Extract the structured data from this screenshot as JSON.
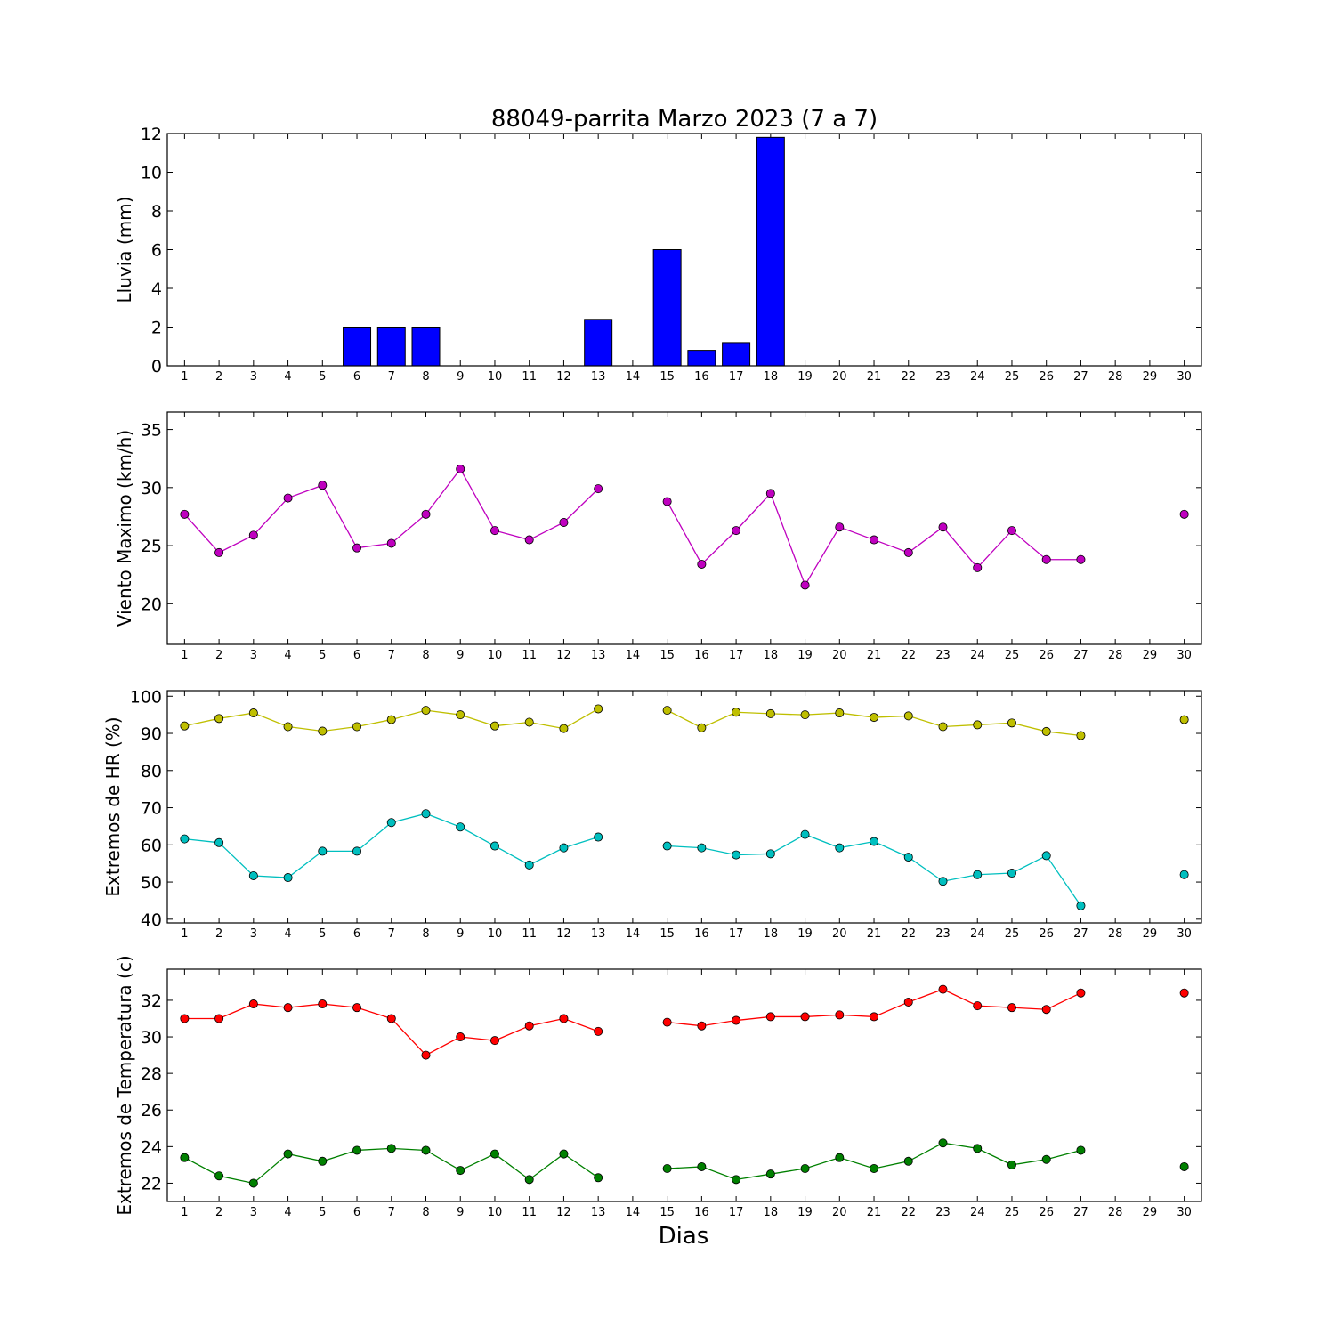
{
  "figure": {
    "title": "88049-parrita Marzo 2023  (7 a 7)",
    "xlabel": "Dias"
  },
  "chart_data": [
    {
      "id": "lluvia",
      "type": "bar",
      "ylabel": "Lluvia (mm)",
      "x": [
        1,
        2,
        3,
        4,
        5,
        6,
        7,
        8,
        9,
        10,
        11,
        12,
        13,
        14,
        15,
        16,
        17,
        18,
        19,
        20,
        21,
        22,
        23,
        24,
        25,
        26,
        27,
        28,
        29,
        30
      ],
      "xlim": [
        0.5,
        30.5
      ],
      "ylim": [
        0,
        12
      ],
      "yticks": [
        0,
        2,
        4,
        6,
        8,
        10,
        12
      ],
      "series": [
        {
          "color": "#0000ff",
          "values": [
            0,
            0,
            0,
            0,
            0,
            2,
            2,
            2,
            0,
            0,
            0,
            0,
            2.4,
            null,
            6,
            0.8,
            1.2,
            11.8,
            0,
            0,
            0,
            0,
            0,
            0,
            0,
            0,
            0,
            null,
            null,
            null
          ]
        }
      ]
    },
    {
      "id": "viento",
      "type": "line",
      "ylabel": "Viento Maximo (km/h)",
      "x": [
        1,
        2,
        3,
        4,
        5,
        6,
        7,
        8,
        9,
        10,
        11,
        12,
        13,
        14,
        15,
        16,
        17,
        18,
        19,
        20,
        21,
        22,
        23,
        24,
        25,
        26,
        27,
        28,
        29,
        30
      ],
      "xlim": [
        0.5,
        30.5
      ],
      "ylim": [
        16.5,
        36.5
      ],
      "yticks": [
        20,
        25,
        30,
        35
      ],
      "series": [
        {
          "color": "#bf00bf",
          "values": [
            27.7,
            24.4,
            25.9,
            29.1,
            30.2,
            24.8,
            25.2,
            27.7,
            31.6,
            26.3,
            25.5,
            27,
            29.9,
            null,
            28.8,
            23.4,
            26.3,
            29.5,
            21.6,
            26.6,
            25.5,
            24.4,
            26.6,
            23.1,
            26.3,
            23.8,
            23.8,
            null,
            null,
            27.7
          ]
        }
      ]
    },
    {
      "id": "hr",
      "type": "line",
      "ylabel": "Extremos de HR (%)",
      "x": [
        1,
        2,
        3,
        4,
        5,
        6,
        7,
        8,
        9,
        10,
        11,
        12,
        13,
        14,
        15,
        16,
        17,
        18,
        19,
        20,
        21,
        22,
        23,
        24,
        25,
        26,
        27,
        28,
        29,
        30
      ],
      "xlim": [
        0.5,
        30.5
      ],
      "ylim": [
        39,
        101.5
      ],
      "yticks": [
        40,
        50,
        60,
        70,
        80,
        90,
        100
      ],
      "series": [
        {
          "color": "#bfbf00",
          "values": [
            92,
            94,
            95.5,
            91.8,
            90.6,
            91.8,
            93.7,
            96.2,
            95,
            92,
            93,
            91.3,
            96.6,
            null,
            96.2,
            91.5,
            95.7,
            95.3,
            95,
            95.5,
            94.3,
            94.7,
            91.8,
            92.3,
            92.8,
            90.5,
            89.4,
            null,
            null,
            93.7
          ]
        },
        {
          "color": "#00bfbf",
          "values": [
            61.6,
            60.6,
            51.7,
            51.2,
            58.3,
            58.3,
            66,
            68.4,
            64.8,
            59.7,
            54.6,
            59.2,
            62.1,
            null,
            59.7,
            59.2,
            57.3,
            57.6,
            62.8,
            59.2,
            60.9,
            56.7,
            50.2,
            52,
            52.4,
            57.1,
            43.6,
            null,
            null,
            52
          ]
        }
      ]
    },
    {
      "id": "temperatura",
      "type": "line",
      "ylabel": "Extremos de Temperatura (c)",
      "x": [
        1,
        2,
        3,
        4,
        5,
        6,
        7,
        8,
        9,
        10,
        11,
        12,
        13,
        14,
        15,
        16,
        17,
        18,
        19,
        20,
        21,
        22,
        23,
        24,
        25,
        26,
        27,
        28,
        29,
        30
      ],
      "xlim": [
        0.5,
        30.5
      ],
      "ylim": [
        21,
        33.7
      ],
      "yticks": [
        22,
        24,
        26,
        28,
        30,
        32
      ],
      "series": [
        {
          "color": "#ff0000",
          "values": [
            31,
            31,
            31.8,
            31.6,
            31.8,
            31.6,
            31,
            29,
            30,
            29.8,
            30.6,
            31,
            30.3,
            null,
            30.8,
            30.6,
            30.9,
            31.1,
            31.1,
            31.2,
            31.1,
            31.9,
            32.6,
            31.7,
            31.6,
            31.5,
            32.4,
            null,
            null,
            32.4
          ]
        },
        {
          "color": "#008000",
          "values": [
            23.4,
            22.4,
            22,
            23.6,
            23.2,
            23.8,
            23.9,
            23.8,
            22.7,
            23.6,
            22.2,
            23.6,
            22.3,
            null,
            22.8,
            22.9,
            22.2,
            22.5,
            22.8,
            23.4,
            22.8,
            23.2,
            24.2,
            23.9,
            23,
            23.3,
            23.8,
            null,
            null,
            22.9
          ]
        }
      ]
    }
  ]
}
